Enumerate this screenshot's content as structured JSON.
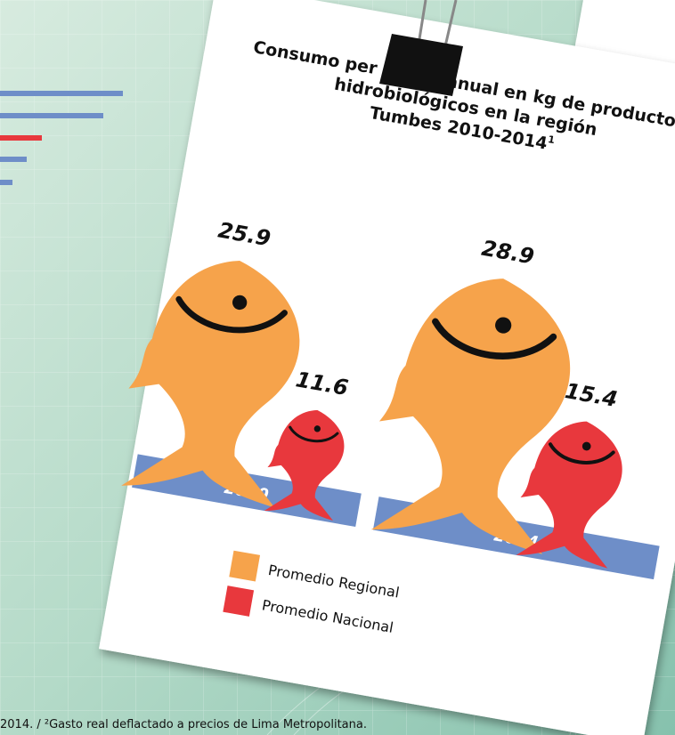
{
  "chart_data": {
    "type": "pictogram",
    "title": [
      "Consumo per cápita anual en kg de productos",
      "hidrobiológicos en la región",
      "Tumbes 2010-2014"
    ],
    "title_superscript": "1",
    "categories": [
      "2010",
      "2014"
    ],
    "series": [
      {
        "name": "Promedio Regional",
        "color": "#f6a34b",
        "values": [
          25.9,
          28.9
        ]
      },
      {
        "name": "Promedio Nacional",
        "color": "#e8383d",
        "values": [
          11.6,
          15.4
        ]
      }
    ],
    "base_color": "#6e8ec8",
    "footnote": "2014. / ²Gasto real deflactado a precios de Lima Metropolitana."
  }
}
